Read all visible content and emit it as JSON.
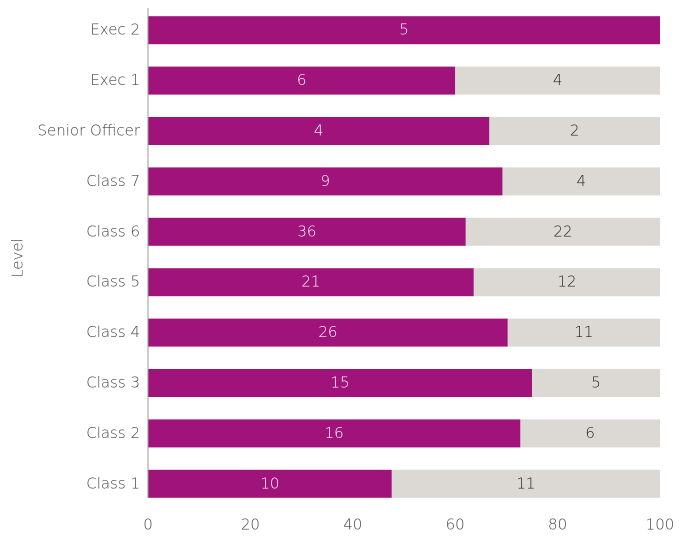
{
  "chart_data": {
    "type": "bar",
    "orientation": "horizontal",
    "stacked": true,
    "percent_stacked": true,
    "y_label": "Level",
    "categories": [
      "Exec 2",
      "Exec 1",
      "Senior Officer",
      "Class 7",
      "Class 6",
      "Class 5",
      "Class 4",
      "Class 3",
      "Class 2",
      "Class 1"
    ],
    "series": [
      {
        "color": "#a0137b",
        "label_color": "#ffffff",
        "values": [
          5,
          6,
          4,
          9,
          36,
          21,
          26,
          15,
          16,
          10
        ]
      },
      {
        "color": "#dcd9d4",
        "label_color": "#222222",
        "values": [
          null,
          4,
          2,
          4,
          22,
          12,
          11,
          5,
          6,
          11
        ]
      }
    ],
    "xlim": [
      0,
      100
    ],
    "xticks": [
      0,
      20,
      40,
      60,
      80,
      100
    ]
  }
}
